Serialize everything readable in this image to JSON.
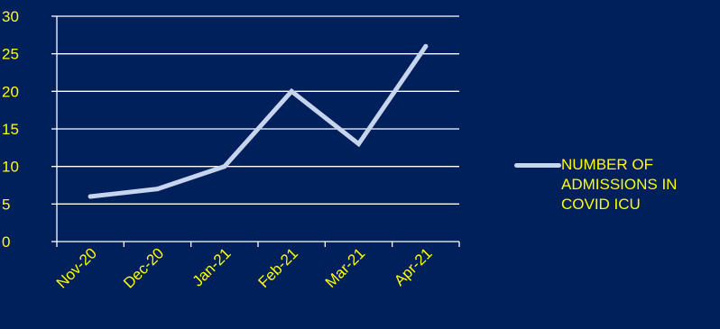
{
  "colors": {
    "background": "#00205b",
    "axis": "#ffffff",
    "grid": "#ffffff",
    "text": "#ffff00",
    "series": "#c6d4ee"
  },
  "chart_data": {
    "type": "line",
    "title": "",
    "xlabel": "",
    "ylabel": "",
    "categories": [
      "Nov-20",
      "Dec-20",
      "Jan-21",
      "Feb-21",
      "Mar-21",
      "Apr-21"
    ],
    "series": [
      {
        "name": "NUMBER OF ADMISSIONS IN COVID ICU",
        "values": [
          6,
          7,
          10,
          20,
          13,
          26
        ]
      }
    ],
    "ylim": [
      0,
      30
    ],
    "yticks": [
      0,
      5,
      10,
      15,
      20,
      25,
      30
    ],
    "grid": true,
    "legend_position": "right"
  }
}
